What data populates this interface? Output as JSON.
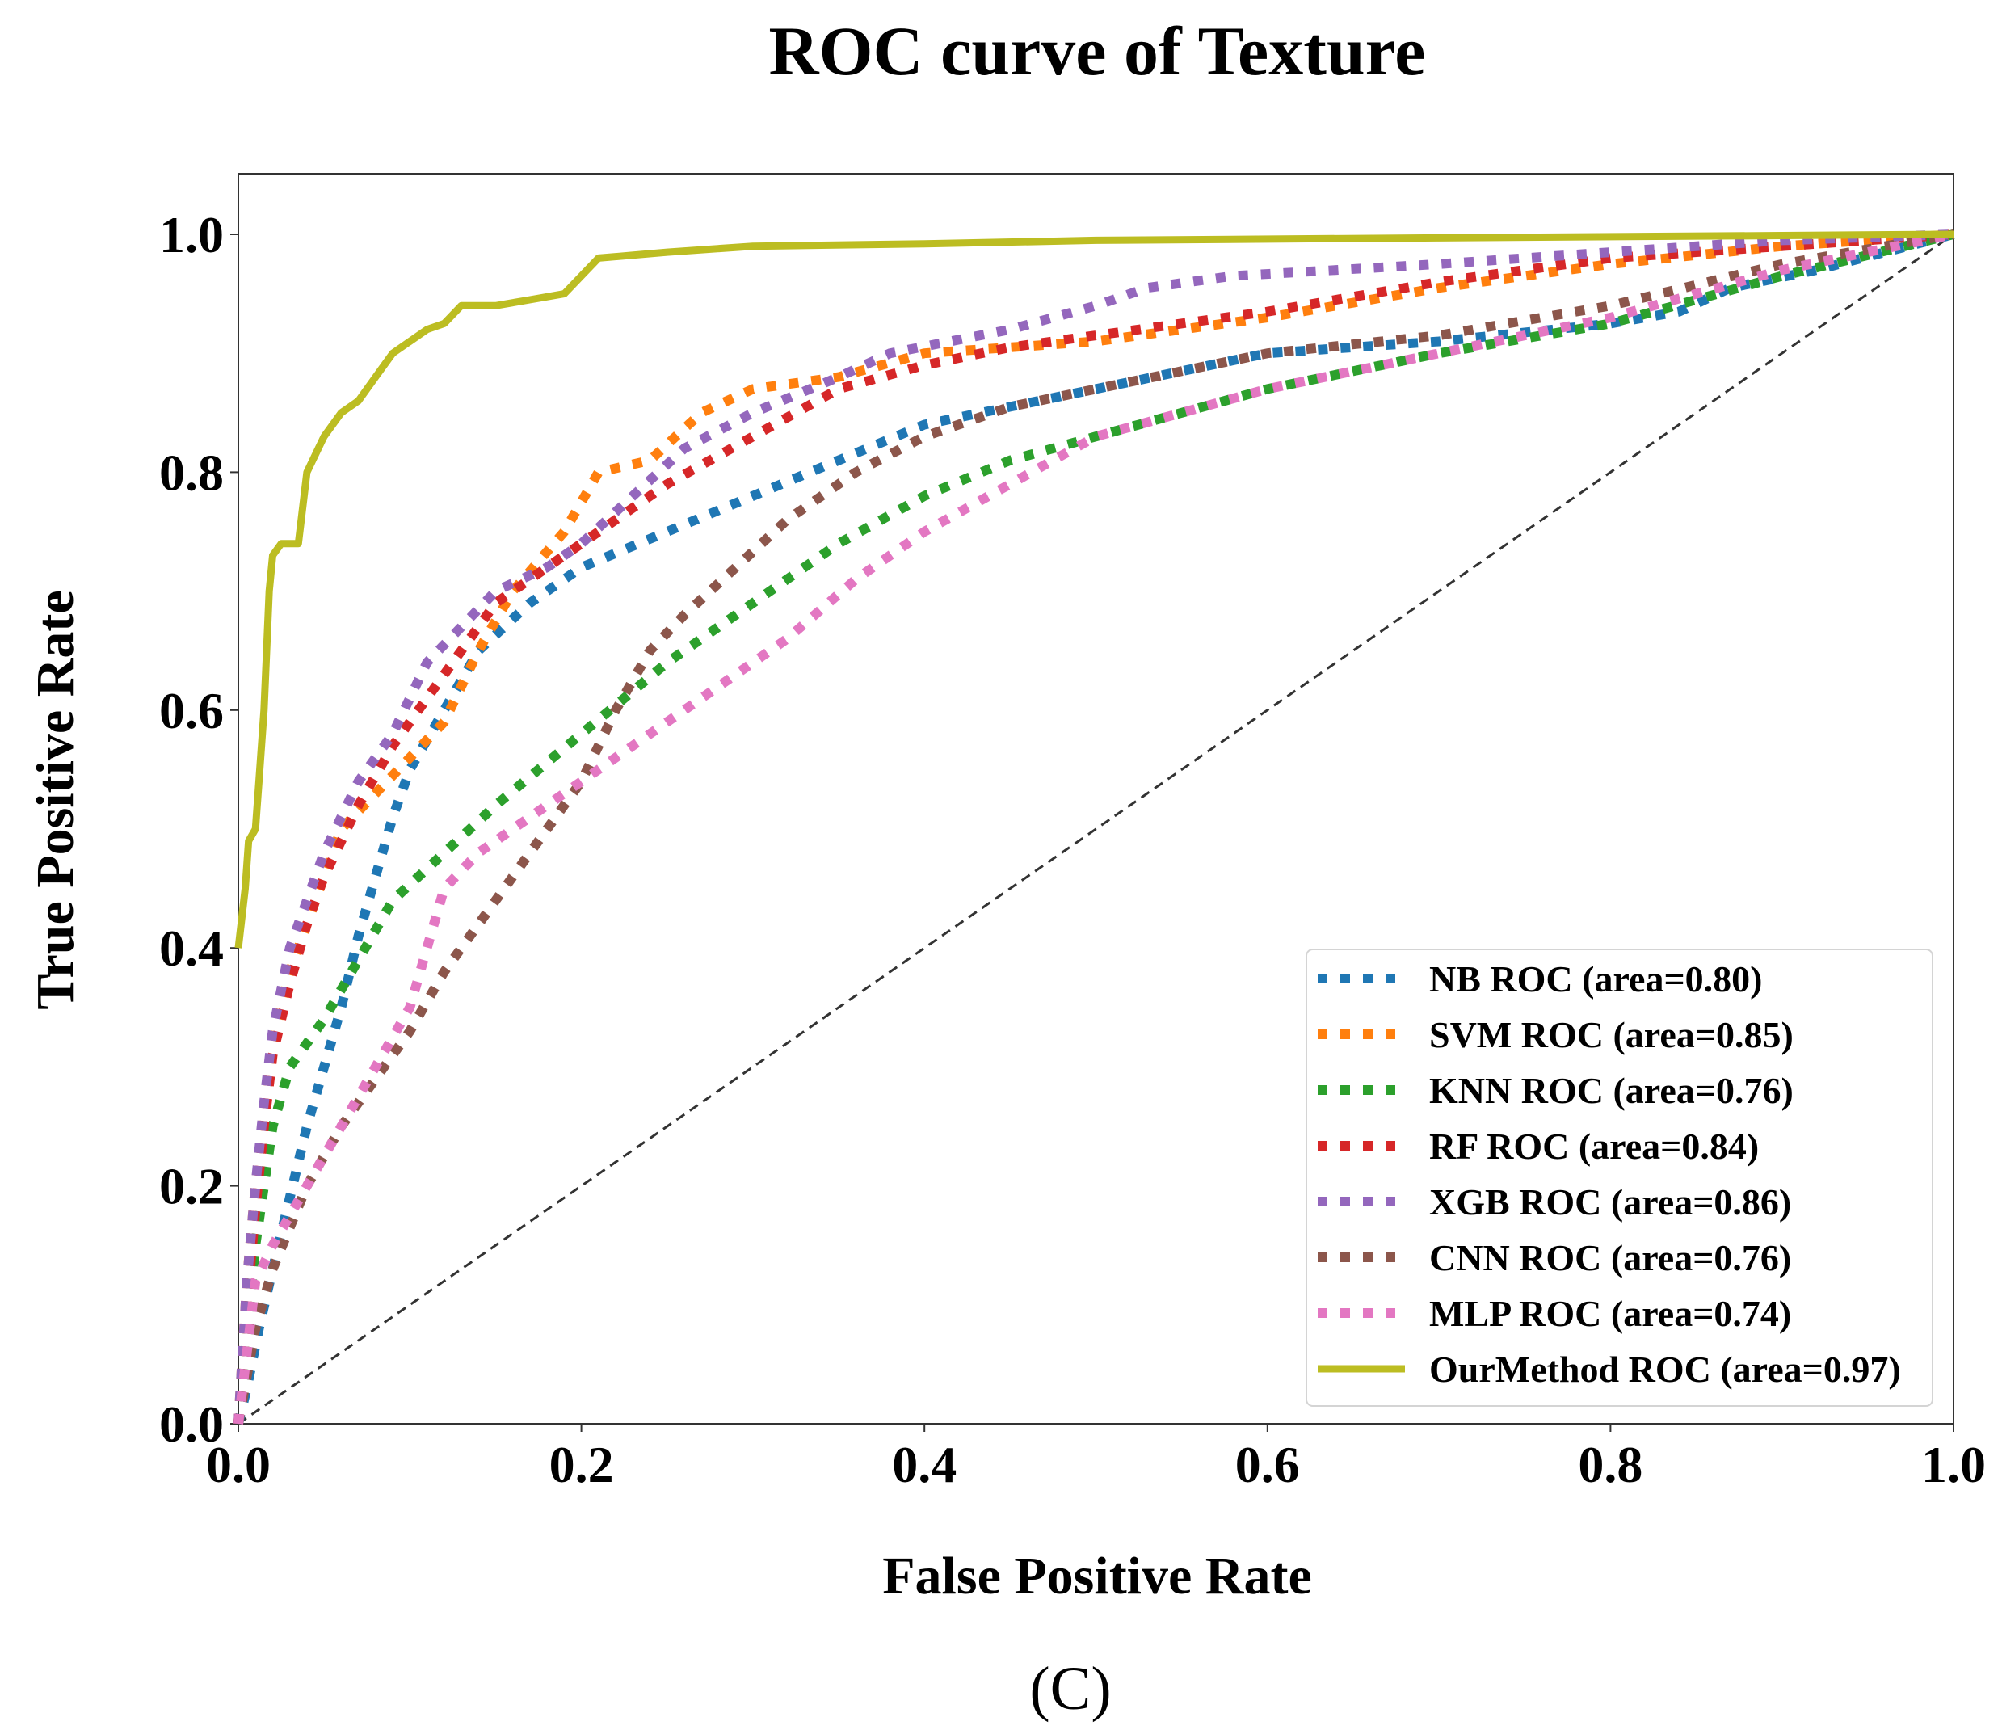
{
  "chart_data": {
    "type": "line",
    "title": "ROC curve of Texture",
    "xlabel": "False Positive Rate",
    "ylabel": "True Positive Rate",
    "xlim": [
      0.0,
      1.0
    ],
    "ylim": [
      0.0,
      1.05
    ],
    "xticks": [
      "0.0",
      "0.2",
      "0.4",
      "0.6",
      "0.8",
      "1.0"
    ],
    "yticks": [
      "0.0",
      "0.2",
      "0.4",
      "0.6",
      "0.8",
      "1.0"
    ],
    "legend_position": "lower-right",
    "panel_label": "(C)",
    "diagonal": {
      "x": [
        0,
        1
      ],
      "y": [
        0,
        1
      ],
      "color": "#333333",
      "style": "dashed"
    },
    "series": [
      {
        "name": "NB ROC (area=0.80)",
        "color": "#1f77b4",
        "style": "dotted",
        "x": [
          0,
          0.005,
          0.012,
          0.02,
          0.03,
          0.04,
          0.05,
          0.06,
          0.07,
          0.08,
          0.09,
          0.1,
          0.12,
          0.14,
          0.17,
          0.2,
          0.25,
          0.3,
          0.35,
          0.4,
          0.45,
          0.5,
          0.55,
          0.6,
          0.7,
          0.8,
          0.84,
          0.87,
          0.92,
          0.96,
          1.0
        ],
        "y": [
          0,
          0.03,
          0.08,
          0.13,
          0.19,
          0.25,
          0.3,
          0.35,
          0.41,
          0.46,
          0.51,
          0.55,
          0.6,
          0.65,
          0.69,
          0.72,
          0.75,
          0.78,
          0.81,
          0.84,
          0.855,
          0.87,
          0.885,
          0.9,
          0.91,
          0.925,
          0.935,
          0.955,
          0.97,
          0.985,
          1.0
        ]
      },
      {
        "name": "SVM ROC (area=0.85)",
        "color": "#ff7f0e",
        "style": "dotted",
        "x": [
          0,
          0.005,
          0.01,
          0.015,
          0.02,
          0.03,
          0.04,
          0.05,
          0.06,
          0.08,
          0.1,
          0.12,
          0.14,
          0.16,
          0.19,
          0.21,
          0.24,
          0.27,
          0.3,
          0.35,
          0.4,
          0.5,
          0.6,
          0.7,
          0.8,
          0.9,
          1.0
        ],
        "y": [
          0,
          0.12,
          0.2,
          0.26,
          0.32,
          0.38,
          0.42,
          0.46,
          0.5,
          0.53,
          0.56,
          0.59,
          0.65,
          0.7,
          0.75,
          0.8,
          0.81,
          0.85,
          0.87,
          0.88,
          0.9,
          0.91,
          0.93,
          0.955,
          0.975,
          0.99,
          1.0
        ]
      },
      {
        "name": "KNN ROC (area=0.76)",
        "color": "#2ca02c",
        "style": "dotted",
        "x": [
          0,
          0.01,
          0.02,
          0.03,
          0.05,
          0.07,
          0.09,
          0.12,
          0.15,
          0.2,
          0.25,
          0.3,
          0.35,
          0.4,
          0.45,
          0.5,
          0.55,
          0.6,
          0.7,
          0.8,
          0.9,
          1.0
        ],
        "y": [
          0,
          0.15,
          0.25,
          0.3,
          0.34,
          0.39,
          0.44,
          0.48,
          0.52,
          0.58,
          0.64,
          0.69,
          0.74,
          0.78,
          0.81,
          0.83,
          0.85,
          0.87,
          0.9,
          0.925,
          0.965,
          1.0
        ]
      },
      {
        "name": "RF ROC (area=0.84)",
        "color": "#d62728",
        "style": "dotted",
        "x": [
          0,
          0.005,
          0.01,
          0.015,
          0.02,
          0.03,
          0.04,
          0.05,
          0.07,
          0.09,
          0.11,
          0.13,
          0.15,
          0.18,
          0.2,
          0.25,
          0.3,
          0.35,
          0.4,
          0.45,
          0.5,
          0.6,
          0.7,
          0.8,
          0.9,
          1.0
        ],
        "y": [
          0,
          0.1,
          0.18,
          0.25,
          0.31,
          0.37,
          0.42,
          0.46,
          0.52,
          0.57,
          0.61,
          0.65,
          0.69,
          0.72,
          0.74,
          0.79,
          0.83,
          0.87,
          0.89,
          0.905,
          0.915,
          0.935,
          0.96,
          0.98,
          0.99,
          1.0
        ]
      },
      {
        "name": "XGB ROC (area=0.86)",
        "color": "#9467bd",
        "style": "dotted",
        "x": [
          0,
          0.005,
          0.01,
          0.015,
          0.02,
          0.03,
          0.05,
          0.07,
          0.09,
          0.11,
          0.13,
          0.15,
          0.18,
          0.2,
          0.23,
          0.26,
          0.3,
          0.35,
          0.38,
          0.45,
          0.5,
          0.53,
          0.58,
          0.7,
          0.8,
          0.9,
          1.0
        ],
        "y": [
          0,
          0.12,
          0.2,
          0.27,
          0.33,
          0.4,
          0.48,
          0.54,
          0.58,
          0.64,
          0.67,
          0.7,
          0.72,
          0.74,
          0.78,
          0.82,
          0.85,
          0.88,
          0.9,
          0.92,
          0.94,
          0.955,
          0.965,
          0.975,
          0.985,
          0.995,
          1.0
        ]
      },
      {
        "name": "CNN ROC (area=0.76)",
        "color": "#8c564b",
        "style": "dotted",
        "x": [
          0,
          0.01,
          0.02,
          0.04,
          0.06,
          0.08,
          0.1,
          0.12,
          0.15,
          0.18,
          0.2,
          0.22,
          0.24,
          0.26,
          0.29,
          0.32,
          0.36,
          0.4,
          0.45,
          0.5,
          0.55,
          0.6,
          0.7,
          0.8,
          0.9,
          1.0
        ],
        "y": [
          0,
          0.08,
          0.13,
          0.2,
          0.25,
          0.29,
          0.33,
          0.38,
          0.44,
          0.5,
          0.54,
          0.6,
          0.65,
          0.68,
          0.72,
          0.76,
          0.8,
          0.83,
          0.855,
          0.87,
          0.885,
          0.9,
          0.915,
          0.94,
          0.975,
          1.0
        ]
      },
      {
        "name": "MLP ROC (area=0.74)",
        "color": "#e377c2",
        "style": "dotted",
        "x": [
          0,
          0.01,
          0.02,
          0.04,
          0.06,
          0.08,
          0.1,
          0.11,
          0.12,
          0.14,
          0.17,
          0.2,
          0.24,
          0.28,
          0.32,
          0.36,
          0.4,
          0.45,
          0.5,
          0.55,
          0.6,
          0.7,
          0.8,
          0.9,
          1.0
        ],
        "y": [
          0,
          0.12,
          0.15,
          0.2,
          0.25,
          0.3,
          0.35,
          0.4,
          0.45,
          0.48,
          0.51,
          0.54,
          0.58,
          0.62,
          0.66,
          0.71,
          0.75,
          0.79,
          0.83,
          0.85,
          0.87,
          0.9,
          0.93,
          0.97,
          1.0
        ]
      },
      {
        "name": "OurMethod ROC (area=0.97)",
        "color": "#bcbd22",
        "style": "solid",
        "x": [
          0,
          0.004,
          0.006,
          0.01,
          0.012,
          0.015,
          0.018,
          0.02,
          0.025,
          0.035,
          0.04,
          0.05,
          0.06,
          0.07,
          0.08,
          0.09,
          0.1,
          0.11,
          0.12,
          0.13,
          0.15,
          0.17,
          0.19,
          0.2,
          0.21,
          0.25,
          0.3,
          0.4,
          0.5,
          0.7,
          0.9,
          1.0
        ],
        "y": [
          0.4,
          0.45,
          0.49,
          0.5,
          0.54,
          0.6,
          0.7,
          0.73,
          0.74,
          0.74,
          0.8,
          0.83,
          0.85,
          0.86,
          0.88,
          0.9,
          0.91,
          0.92,
          0.925,
          0.94,
          0.94,
          0.945,
          0.95,
          0.965,
          0.98,
          0.985,
          0.99,
          0.992,
          0.995,
          0.997,
          0.999,
          1.0
        ]
      }
    ]
  }
}
